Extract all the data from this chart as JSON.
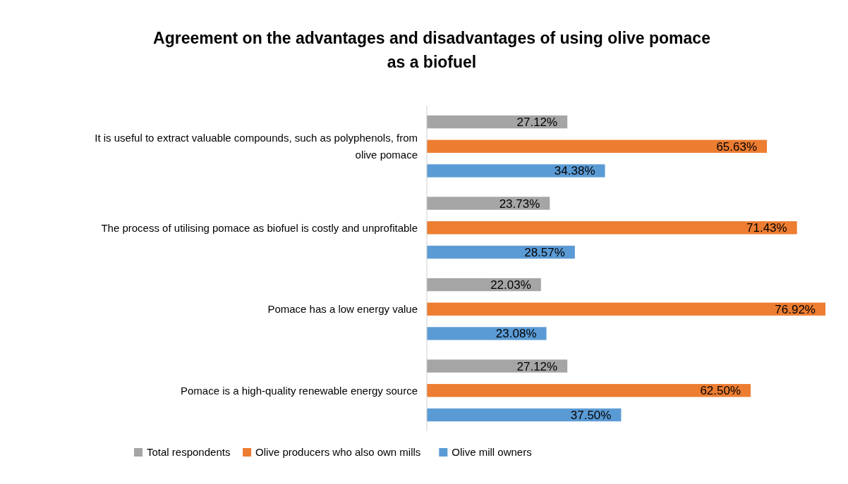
{
  "chart_data": {
    "type": "bar",
    "orientation": "horizontal",
    "title": "Agreement on the advantages and disadvantages of using olive pomace as a biofuel",
    "categories": [
      "It is useful to extract valuable compounds, such as polyphenols, from olive pomace",
      "The process of utilising pomace as biofuel is costly and unprofitable",
      "Pomace has a low energy value",
      "Pomace is a high-quality renewable energy source"
    ],
    "series": [
      {
        "name": "Total respondents",
        "color": "#a5a5a5",
        "values": [
          27.12,
          23.73,
          22.03,
          27.12
        ],
        "value_labels": [
          "27.12%",
          "23.73%",
          "22.03%",
          "27.12%"
        ]
      },
      {
        "name": "Olive producers who also own mills",
        "color": "#ed7d31",
        "values": [
          65.63,
          71.43,
          76.92,
          62.5
        ],
        "value_labels": [
          "65.63%",
          "71.43%",
          "76.92%",
          "62.50%"
        ]
      },
      {
        "name": "Olive mill owners",
        "color": "#5b9bd5",
        "values": [
          34.38,
          28.57,
          23.08,
          37.5
        ],
        "value_labels": [
          "34.38%",
          "28.57%",
          "23.08%",
          "37.50%"
        ]
      }
    ],
    "legend": "bottom"
  }
}
